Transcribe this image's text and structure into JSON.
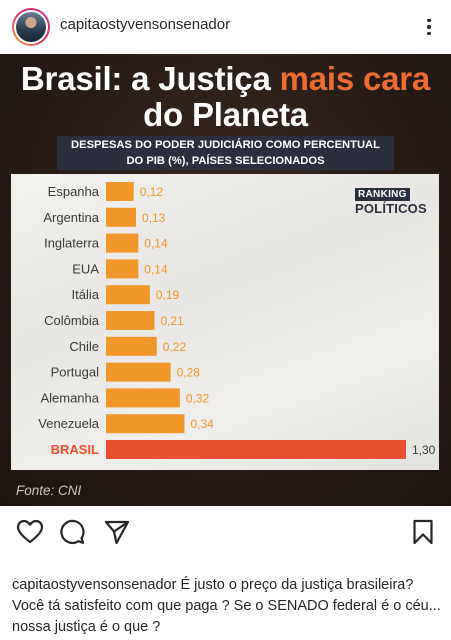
{
  "post": {
    "username": "capitaostyvensonsenador",
    "more_label": "more-options"
  },
  "image": {
    "headline_line1_prefix": "Brasil: a Justiça ",
    "headline_line1_accent": "mais cara",
    "headline_line2": "do Planeta",
    "subtitle_line1": "DESPESAS DO PODER JUDICIÁRIO COMO PERCENTUAL",
    "subtitle_line2": "DO PIB (%), PAÍSES SELECIONADOS",
    "logo_top": "RANKING",
    "logo_bottom": "POLÍTICOS",
    "source": "Fonte: CNI"
  },
  "chart_data": {
    "type": "bar",
    "orientation": "horizontal",
    "categories": [
      "Espanha",
      "Argentina",
      "Inglaterra",
      "EUA",
      "Itália",
      "Colômbia",
      "Chile",
      "Portugal",
      "Alemanha",
      "Venezuela",
      "BRASIL"
    ],
    "values": [
      0.12,
      0.13,
      0.14,
      0.14,
      0.19,
      0.21,
      0.22,
      0.28,
      0.32,
      0.34,
      1.3
    ],
    "value_labels": [
      "0,12",
      "0,13",
      "0,14",
      "0,14",
      "0,19",
      "0,21",
      "0,22",
      "0,28",
      "0,32",
      "0,34",
      "1,30"
    ],
    "highlight_category": "BRASIL",
    "xlim": [
      0,
      1.3
    ],
    "colors": {
      "bar": "#f0962a",
      "highlight": "#e8502f",
      "label": "#3a3a3a",
      "highlight_label": "#e8502f"
    },
    "grid": false,
    "legend": "none"
  },
  "actions": {
    "like": "heart-icon",
    "comment": "comment-icon",
    "share": "paper-plane-icon",
    "save": "bookmark-icon"
  },
  "caption": {
    "username": "capitaostyvensonsenador",
    "text": " É justo o preço da justiça brasileira? Você tá satisfeito com que paga ? Se o SENADO federal é o céu... nossa justiça é o que ?"
  }
}
